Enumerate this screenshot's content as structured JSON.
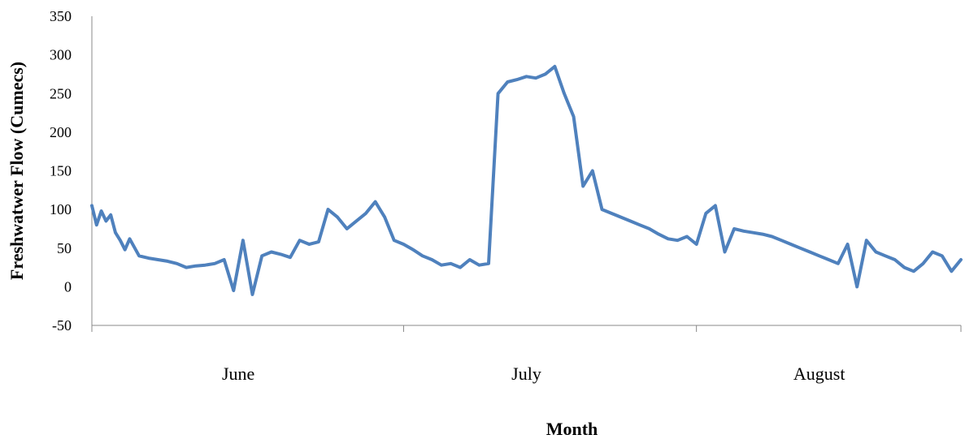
{
  "chart_data": {
    "type": "line",
    "title": "",
    "xlabel": "Month",
    "ylabel": "Freshwatwer Flow (Cumecs)",
    "ylim": [
      -50,
      350
    ],
    "yticks": [
      -50,
      0,
      50,
      100,
      150,
      200,
      250,
      300,
      350
    ],
    "xlim": [
      0,
      92
    ],
    "categories": [
      "June",
      "July",
      "August"
    ],
    "category_centers": [
      15.5,
      46,
      77
    ],
    "month_boundaries": [
      0,
      33,
      64,
      92
    ],
    "grid": false,
    "legend": "none",
    "series": [
      {
        "color": "#4f81bd",
        "x": [
          0,
          0.5,
          1,
          1.5,
          2,
          2.5,
          3,
          3.5,
          4,
          5,
          6,
          7,
          8,
          9,
          10,
          11,
          12,
          13,
          14,
          15,
          16,
          17,
          18,
          19,
          20,
          21,
          22,
          23,
          24,
          25,
          26,
          27,
          28,
          29,
          30,
          31,
          32,
          33,
          34,
          35,
          36,
          37,
          38,
          39,
          40,
          41,
          42,
          43,
          44,
          45,
          46,
          47,
          48,
          49,
          50,
          51,
          52,
          53,
          54,
          55,
          56,
          57,
          58,
          59,
          60,
          61,
          62,
          63,
          64,
          65,
          66,
          67,
          68,
          69,
          70,
          71,
          72,
          73,
          74,
          75,
          76,
          77,
          78,
          79,
          80,
          81,
          82,
          83,
          84,
          85,
          86,
          87,
          88,
          89,
          90,
          91,
          92
        ],
        "values": [
          105,
          80,
          98,
          85,
          93,
          70,
          60,
          48,
          62,
          40,
          37,
          35,
          33,
          30,
          25,
          27,
          28,
          30,
          35,
          -5,
          60,
          -10,
          40,
          45,
          42,
          38,
          60,
          55,
          58,
          100,
          90,
          75,
          85,
          95,
          110,
          90,
          60,
          55,
          48,
          40,
          35,
          28,
          30,
          25,
          35,
          28,
          30,
          250,
          265,
          268,
          272,
          270,
          275,
          285,
          250,
          220,
          130,
          150,
          100,
          95,
          90,
          85,
          80,
          75,
          68,
          62,
          60,
          65,
          55,
          95,
          105,
          45,
          75,
          72,
          70,
          68,
          65,
          60,
          55,
          50,
          45,
          40,
          35,
          30,
          55,
          0,
          60,
          45,
          40,
          35,
          25,
          20,
          30,
          45,
          40,
          20,
          35
        ]
      }
    ]
  }
}
